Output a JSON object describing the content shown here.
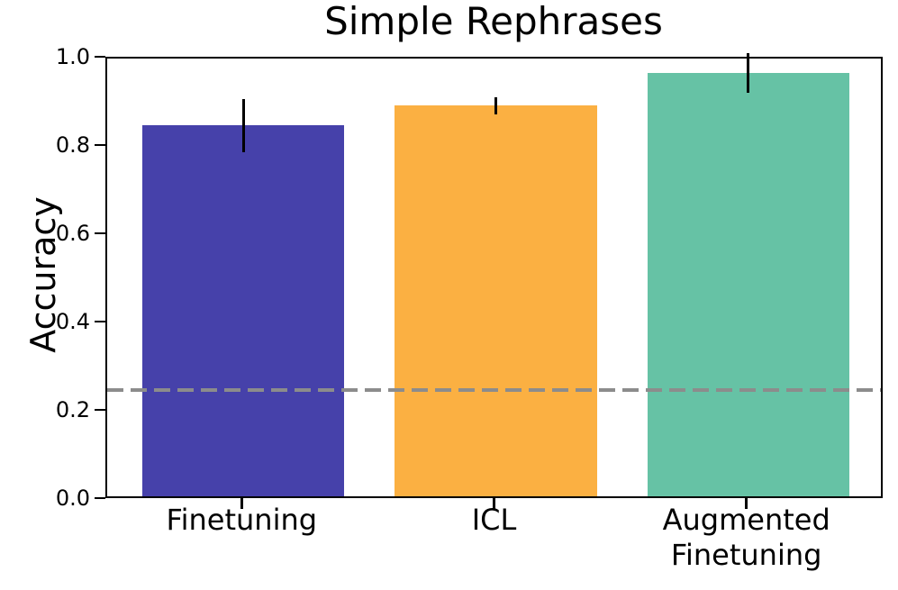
{
  "chart_data": {
    "type": "bar",
    "title": "Simple Rephrases",
    "xlabel": "",
    "ylabel": "Accuracy",
    "categories": [
      "Finetuning",
      "ICL",
      "Augmented\nFinetuning"
    ],
    "values": [
      0.84,
      0.885,
      0.96
    ],
    "errors": [
      0.06,
      0.02,
      0.045
    ],
    "bar_colors": [
      "#4641aa",
      "#fbb042",
      "#66c2a5"
    ],
    "error_bar_color": "#000000",
    "reference_line": {
      "value": 0.25,
      "color": "#8c8c8c",
      "style": "dashed"
    },
    "ylim": [
      0.0,
      1.0
    ],
    "yticks": [
      0.0,
      0.2,
      0.4,
      0.6,
      0.8,
      1.0
    ],
    "ytick_labels": [
      "0.0",
      "0.2",
      "0.4",
      "0.6",
      "0.8",
      "1.0"
    ],
    "grid": false,
    "legend": null,
    "bar_width_fraction": 0.8
  }
}
